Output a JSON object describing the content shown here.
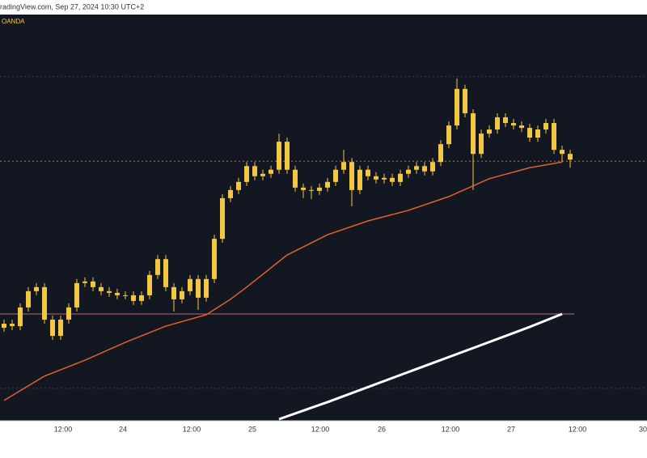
{
  "chart_data": {
    "type": "candlestick",
    "title": "radingView.com, Sep 27, 2024 10:30 UTC+2",
    "source": "OANDA",
    "color": "#f2c744",
    "open": [
      22.9,
      23.9,
      23.3,
      27.9,
      31.9,
      32.9,
      24.9,
      20.9,
      24.9,
      27.9,
      33.9,
      34.3,
      32.9,
      31.9,
      31.5,
      30.9,
      30.9,
      29.5,
      30.9,
      35.9,
      39.8,
      32.9,
      29.9,
      31.9,
      34.9,
      30.3,
      34.9,
      44.8,
      54.8,
      56.8,
      58.8,
      62.7,
      60.2,
      60.8,
      61.8,
      68.7,
      61.8,
      57.4,
      56.8,
      56.6,
      57.4,
      58.8,
      61.8,
      63.7,
      56.8,
      61.8,
      60.2,
      59.4,
      59.8,
      58.8,
      60.8,
      61.8,
      62.7,
      61.4,
      63.7,
      68.1,
      72.7,
      81.7,
      75.7,
      65.7,
      70.7,
      71.7,
      74.7,
      73.3,
      72.7,
      72.1,
      69.7,
      71.7,
      73.3,
      66.7,
      65.7
    ],
    "high": [
      24.9,
      24.9,
      28.9,
      32.9,
      33.9,
      33.9,
      25.9,
      25.9,
      28.9,
      34.9,
      35.3,
      35.3,
      33.9,
      32.9,
      32.5,
      31.9,
      31.9,
      31.9,
      36.9,
      40.8,
      40.8,
      33.9,
      32.9,
      35.9,
      35.9,
      35.9,
      45.8,
      55.8,
      57.8,
      59.8,
      63.7,
      63.7,
      61.8,
      62.8,
      70.7,
      69.7,
      62.8,
      58.4,
      57.8,
      58.4,
      59.8,
      62.8,
      66.7,
      64.7,
      62.8,
      62.8,
      61.2,
      60.8,
      60.8,
      61.8,
      62.8,
      63.7,
      63.7,
      64.7,
      69.1,
      73.7,
      84.3,
      82.7,
      76.7,
      71.7,
      72.7,
      75.7,
      75.7,
      74.3,
      73.7,
      73.1,
      72.7,
      74.3,
      74.3,
      67.7,
      66.7
    ],
    "low": [
      21.9,
      22.3,
      22.3,
      26.9,
      30.9,
      23.9,
      19.9,
      19.9,
      23.9,
      26.9,
      32.9,
      31.9,
      30.9,
      30.5,
      29.9,
      29.9,
      28.5,
      28.5,
      29.9,
      34.9,
      31.9,
      26.9,
      28.9,
      30.9,
      27.3,
      29.3,
      33.9,
      43.8,
      53.8,
      55.8,
      57.8,
      59.2,
      59.2,
      59.8,
      60.8,
      60.8,
      56.4,
      54.8,
      54.6,
      55.6,
      56.4,
      57.8,
      60.8,
      52.8,
      55.8,
      59.2,
      58.4,
      58.4,
      57.8,
      57.8,
      59.8,
      60.8,
      60.4,
      60.4,
      62.7,
      67.1,
      71.7,
      74.7,
      56.8,
      64.7,
      69.7,
      70.7,
      72.3,
      71.7,
      71.1,
      68.7,
      68.7,
      70.7,
      65.7,
      63.7,
      62.3
    ],
    "close": [
      23.9,
      23.3,
      27.9,
      31.9,
      32.9,
      24.9,
      20.9,
      24.9,
      27.9,
      33.9,
      34.3,
      32.9,
      31.9,
      31.5,
      30.9,
      30.9,
      29.5,
      30.9,
      35.9,
      39.8,
      32.9,
      29.9,
      31.9,
      34.9,
      30.3,
      34.9,
      44.8,
      54.8,
      56.8,
      58.8,
      62.7,
      60.2,
      60.8,
      61.8,
      68.7,
      61.8,
      57.4,
      56.8,
      56.6,
      57.4,
      58.8,
      61.8,
      63.7,
      56.8,
      61.8,
      60.2,
      59.4,
      59.8,
      58.8,
      60.8,
      61.8,
      62.7,
      61.4,
      63.7,
      68.1,
      72.7,
      81.7,
      75.7,
      65.7,
      70.7,
      71.7,
      74.7,
      73.3,
      72.7,
      72.1,
      69.7,
      71.7,
      73.3,
      66.7,
      65.7,
      64.3
    ],
    "lines": [
      {
        "color": "#e0622a",
        "x": [
          0,
          5,
          10,
          15,
          20,
          25,
          28,
          30,
          35,
          40,
          45,
          50,
          55,
          60,
          65,
          69
        ],
        "values": [
          5.0,
          11.0,
          14.9,
          19.3,
          23.3,
          26.1,
          29.9,
          32.9,
          40.8,
          45.8,
          49.2,
          51.8,
          55.2,
          59.6,
          62.3,
          63.7
        ]
      },
      {
        "color": "#ffffff",
        "x": [
          34,
          40,
          50,
          58,
          65,
          69
        ],
        "values": [
          0.4,
          4.6,
          12.0,
          17.9,
          23.1,
          26.3
        ]
      }
    ],
    "levels": [
      {
        "value": 84.7,
        "color": "#3a3f4d",
        "dash": true
      },
      {
        "value": 63.9,
        "color": "#e0622a",
        "dash": true
      },
      {
        "value": 26.3,
        "color": "#b56a7a",
        "dash": false
      },
      {
        "value": 8.0,
        "color": "#3a3f4d",
        "dash": true
      }
    ],
    "xlim": [
      -0.5,
      79.5
    ],
    "ylim": [
      0,
      100
    ],
    "xticks": [
      {
        "value": 7.3,
        "label": "12:00"
      },
      {
        "value": 14.7,
        "label": "24"
      },
      {
        "value": 23.2,
        "label": "12:00"
      },
      {
        "value": 30.7,
        "label": "25"
      },
      {
        "value": 39.1,
        "label": "12:00"
      },
      {
        "value": 46.7,
        "label": "26"
      },
      {
        "value": 55.2,
        "label": "12:00"
      },
      {
        "value": 62.7,
        "label": "27"
      },
      {
        "value": 70.9,
        "label": "12:00"
      },
      {
        "value": 79.0,
        "label": "30"
      }
    ]
  }
}
